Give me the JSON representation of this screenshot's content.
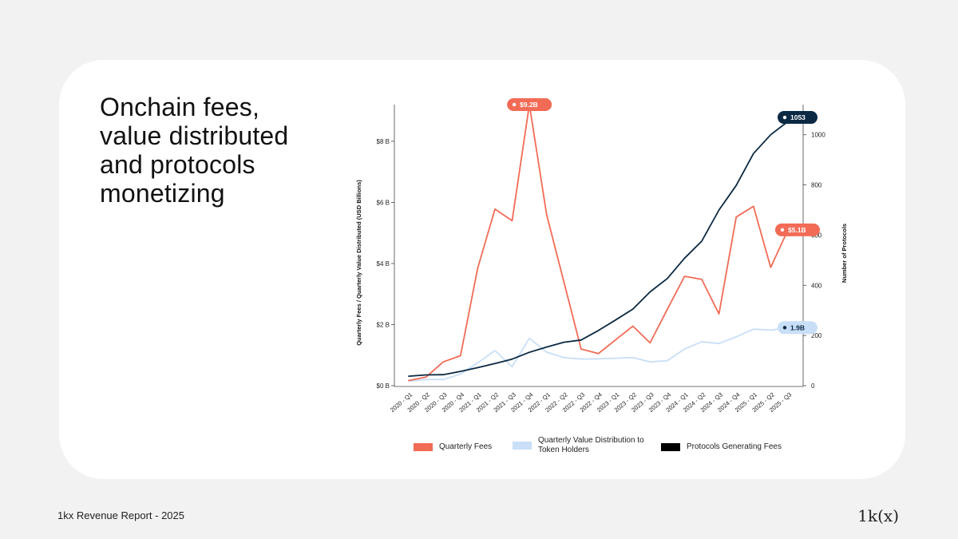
{
  "title": "Onchain fees, value distributed and protocols monetizing",
  "footer": {
    "left": "1kx Revenue Report  - 2025",
    "logo": "1k(x)"
  },
  "colors": {
    "fees": "#f26b56",
    "distribution": "#c8dff7",
    "protocols": "#0b2942"
  },
  "chart_data": {
    "type": "line",
    "categories": [
      "2020 - Q1",
      "2020 - Q2",
      "2020 - Q3",
      "2020 - Q4",
      "2021 - Q1",
      "2021 - Q2",
      "2021 - Q3",
      "2021 - Q4",
      "2022 - Q1",
      "2022 - Q2",
      "2022 - Q3",
      "2022 - Q4",
      "2023 - Q1",
      "2023 - Q2",
      "2023 - Q3",
      "2023 - Q4",
      "2024 - Q1",
      "2024 - Q2",
      "2024 - Q3",
      "2024 - Q4",
      "2025 - Q1",
      "2025 - Q2",
      "2025 - Q3"
    ],
    "ylabel": "Quarterly Fees / Quarterly Value Distributed (USD Billions)",
    "y2label": "Number of Protocols",
    "ylim": [
      0,
      9.2
    ],
    "y2lim": [
      0,
      1120
    ],
    "yticks": [
      "$0 B",
      "$2 B",
      "$4 B",
      "$6 B",
      "$8 B"
    ],
    "y2ticks": [
      "0",
      "200",
      "400",
      "600",
      "800",
      "1000"
    ],
    "series": [
      {
        "name": "Quarterly Fees",
        "axis": "left",
        "values": [
          0.17,
          0.28,
          0.78,
          0.98,
          3.85,
          5.78,
          5.4,
          9.2,
          5.6,
          3.4,
          1.2,
          1.05,
          1.5,
          1.95,
          1.4,
          2.5,
          3.58,
          3.48,
          2.35,
          5.52,
          5.87,
          3.87,
          5.1
        ]
      },
      {
        "name": "Quarterly Value Distribution to Token Holders",
        "axis": "left",
        "values": [
          0.15,
          0.2,
          0.2,
          0.38,
          0.75,
          1.15,
          0.62,
          1.55,
          1.1,
          0.92,
          0.87,
          0.88,
          0.9,
          0.92,
          0.78,
          0.82,
          1.2,
          1.44,
          1.38,
          1.6,
          1.85,
          1.82,
          1.9
        ]
      },
      {
        "name": "Protocols Generating Fees",
        "axis": "right",
        "values": [
          38,
          43,
          44,
          57,
          72,
          88,
          106,
          133,
          154,
          173,
          182,
          220,
          262,
          305,
          374,
          427,
          508,
          576,
          700,
          798,
          925,
          1000,
          1053
        ]
      }
    ],
    "callouts": [
      {
        "label": "$9.2B",
        "series": 0,
        "index": 7
      },
      {
        "label": "$5.1B",
        "series": 0,
        "index": 22
      },
      {
        "label": "1.9B",
        "series": 1,
        "index": 22
      },
      {
        "label": "1053",
        "series": 2,
        "index": 22
      }
    ],
    "legend": [
      {
        "label": "Quarterly Fees",
        "color": "#f26b56"
      },
      {
        "label": "Quarterly Value Distribution to Token Holders",
        "color": "#c8dff7"
      },
      {
        "label": "Protocols Generating Fees",
        "color": "#000000"
      }
    ],
    "grid": false,
    "legend_position": "bottom"
  }
}
